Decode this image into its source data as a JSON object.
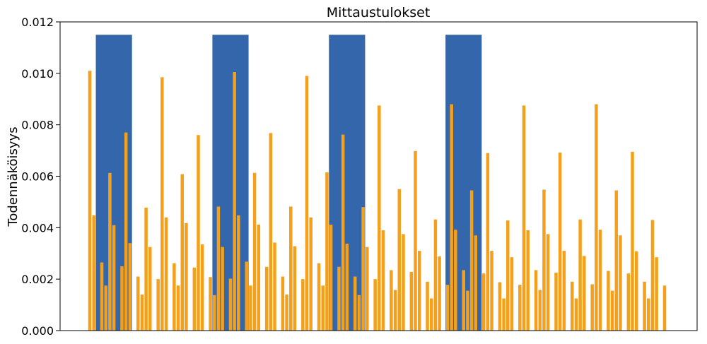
{
  "chart_data": {
    "type": "bar",
    "title": "Mittaustulokset",
    "xlabel": "",
    "ylabel": "Todennäköisyys",
    "ylim": [
      0,
      0.012
    ],
    "yticks": [
      "0.000",
      "0.002",
      "0.004",
      "0.006",
      "0.008",
      "0.010",
      "0.012"
    ],
    "grid": false,
    "colors": {
      "highlight": "#3366aa",
      "bars": "#f5a01a",
      "axis": "#000000"
    },
    "highlight_value": 0.0115,
    "highlight_regions": [
      {
        "from": 1.5,
        "to": 10.5
      },
      {
        "from": 30.5,
        "to": 39.5
      },
      {
        "from": 59.5,
        "to": 68.5
      },
      {
        "from": 88.5,
        "to": 97.5
      }
    ],
    "series": [
      {
        "values": [
          0.0101,
          0.00448,
          0,
          0.00265,
          0.00175,
          0.00613,
          0.0041,
          0,
          0.0025,
          0.0077,
          0.0034,
          0,
          0.0021,
          0.0014,
          0.00478,
          0.00325,
          0,
          0.002,
          0.00985,
          0.0044,
          0,
          0.00262,
          0.00175,
          0.00608,
          0.00418,
          0,
          0.00245,
          0.0076,
          0.00335,
          0,
          0.00208,
          0.00138,
          0.00482,
          0.00325,
          0,
          0.00202,
          0.01005,
          0.00448,
          0,
          0.00268,
          0.00175,
          0.00613,
          0.00412,
          0,
          0.00248,
          0.00768,
          0.00342,
          0,
          0.0021,
          0.0014,
          0.00482,
          0.00328,
          0,
          0.002,
          0.0099,
          0.0044,
          0,
          0.00262,
          0.00175,
          0.00615,
          0.00412,
          0,
          0.00248,
          0.00762,
          0.00338,
          0,
          0.0021,
          0.00138,
          0.0048,
          0.00325,
          0,
          0.002,
          0.00875,
          0.0039,
          0,
          0.00235,
          0.00158,
          0.0055,
          0.00375,
          0,
          0.00228,
          0.00698,
          0.0031,
          0,
          0.0019,
          0.00125,
          0.00432,
          0.00288,
          0,
          0.00178,
          0.0088,
          0.00392,
          0,
          0.00235,
          0.00155,
          0.00545,
          0.0037,
          0,
          0.00222,
          0.0069,
          0.0031,
          0,
          0.00188,
          0.00125,
          0.00428,
          0.00285,
          0,
          0.00178,
          0.00875,
          0.0039,
          0,
          0.00235,
          0.00158,
          0.00548,
          0.00375,
          0,
          0.00225,
          0.00692,
          0.0031,
          0,
          0.0019,
          0.00125,
          0.00432,
          0.0029,
          0,
          0.0018,
          0.0088,
          0.00392,
          0,
          0.00232,
          0.00155,
          0.00545,
          0.0037,
          0,
          0.00222,
          0.00695,
          0.00308,
          0,
          0.0019,
          0.00125,
          0.0043,
          0.00285,
          0,
          0.00175
        ]
      }
    ]
  }
}
